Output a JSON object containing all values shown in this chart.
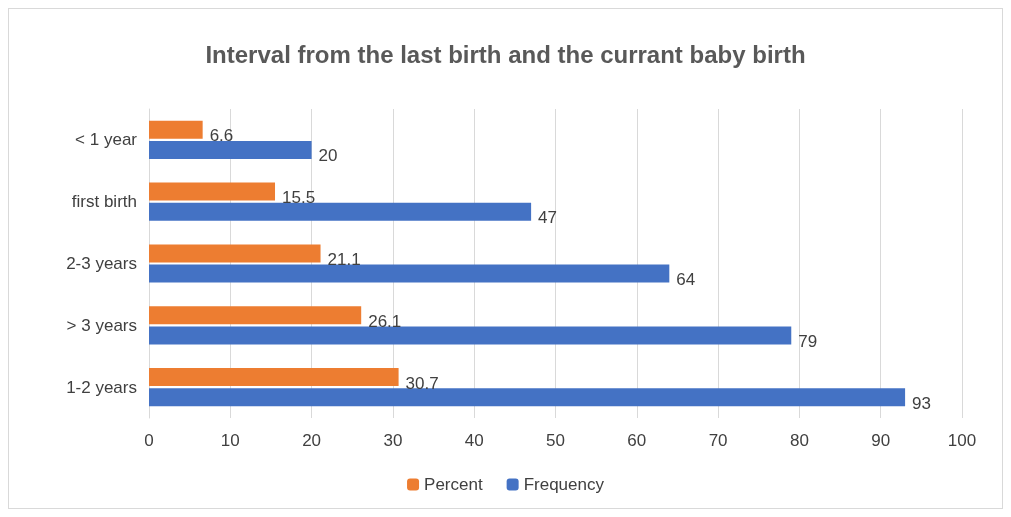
{
  "chart_data": {
    "type": "bar",
    "orientation": "horizontal",
    "title": "Interval from the last birth and the currant baby birth",
    "categories": [
      "< 1 year",
      "first birth",
      "2-3 years",
      "> 3 years",
      "1-2 years"
    ],
    "series": [
      {
        "name": "Percent",
        "color": "#ed7d31",
        "values": [
          6.6,
          15.5,
          21.1,
          26.1,
          30.7
        ]
      },
      {
        "name": "Frequency",
        "color": "#4472c4",
        "values": [
          20,
          47,
          64,
          79,
          93
        ]
      }
    ],
    "xlim": [
      0,
      100
    ],
    "xticks": [
      0,
      10,
      20,
      30,
      40,
      50,
      60,
      70,
      80,
      90,
      100
    ],
    "grid": "x",
    "legend": "bottom",
    "data_labels": true
  }
}
